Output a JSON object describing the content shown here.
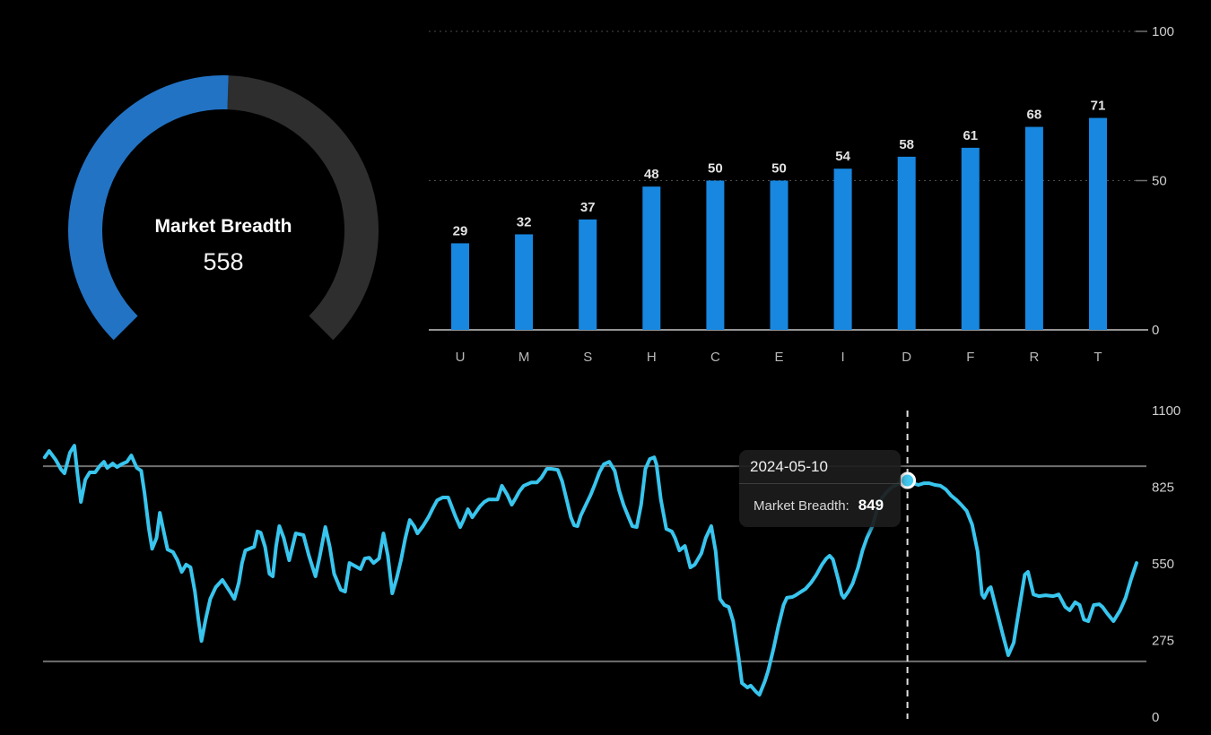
{
  "canvas": {
    "background": "#000000"
  },
  "colors": {
    "gauge_fill": "#2273c4",
    "gauge_track": "#2e2e2e",
    "bar_fill": "#1787e0",
    "line_stroke": "#38c5ee",
    "marker_fill": "#45cbf2",
    "marker_ring": "#ffffff",
    "grid_dotted": "#4d4d4d",
    "axis_solid": "#949494",
    "threshold_line": "#707070",
    "dashed_cursor": "#e0e0e0"
  },
  "chart_data": [
    {
      "type": "gauge",
      "title": "Market Breadth",
      "value": 558,
      "fill_fraction": 0.507,
      "legend_position": "center"
    },
    {
      "type": "bar",
      "title": "",
      "categories": [
        "U",
        "M",
        "S",
        "H",
        "C",
        "E",
        "I",
        "D",
        "F",
        "R",
        "T"
      ],
      "values": [
        29,
        32,
        37,
        48,
        50,
        50,
        54,
        58,
        61,
        68,
        71
      ],
      "xlabel": "",
      "ylabel": "",
      "ylim": [
        0,
        100
      ],
      "yticks": [
        0,
        50,
        100
      ],
      "ytick_labels": [
        "0",
        "50",
        "100"
      ],
      "grid": true,
      "axis_side": "right"
    },
    {
      "type": "line",
      "title": "",
      "xlabel": "",
      "ylabel": "",
      "ylim": [
        0,
        1100
      ],
      "yticks": [
        0,
        275,
        550,
        825,
        1100
      ],
      "ytick_labels": [
        "0",
        "275",
        "550",
        "825",
        "1100"
      ],
      "threshold_values": [
        900,
        200
      ],
      "axis_side": "right",
      "highlight": {
        "date": "2024-05-10",
        "label": "Market Breadth:",
        "value": 849,
        "x_pct": 79.1
      },
      "points": [
        [
          0.4,
          932
        ],
        [
          0.8,
          955
        ],
        [
          1.4,
          923
        ],
        [
          1.9,
          888
        ],
        [
          2.2,
          875
        ],
        [
          2.7,
          949
        ],
        [
          3.1,
          974
        ],
        [
          3.4,
          868
        ],
        [
          3.7,
          772
        ],
        [
          4.1,
          852
        ],
        [
          4.5,
          878
        ],
        [
          5.0,
          878
        ],
        [
          5.4,
          900
        ],
        [
          5.8,
          916
        ],
        [
          6.1,
          894
        ],
        [
          6.6,
          910
        ],
        [
          7.0,
          897
        ],
        [
          7.4,
          907
        ],
        [
          7.9,
          916
        ],
        [
          8.3,
          939
        ],
        [
          8.8,
          894
        ],
        [
          9.2,
          884
        ],
        [
          9.5,
          804
        ],
        [
          9.9,
          675
        ],
        [
          10.2,
          604
        ],
        [
          10.6,
          643
        ],
        [
          10.9,
          733
        ],
        [
          11.2,
          675
        ],
        [
          11.6,
          601
        ],
        [
          12.1,
          592
        ],
        [
          12.5,
          563
        ],
        [
          12.9,
          521
        ],
        [
          13.3,
          547
        ],
        [
          13.7,
          537
        ],
        [
          14.1,
          450
        ],
        [
          14.4,
          354
        ],
        [
          14.7,
          273
        ],
        [
          15.1,
          354
        ],
        [
          15.5,
          424
        ],
        [
          16.0,
          466
        ],
        [
          16.6,
          492
        ],
        [
          17.3,
          450
        ],
        [
          17.7,
          424
        ],
        [
          18.1,
          482
        ],
        [
          18.4,
          553
        ],
        [
          18.7,
          598
        ],
        [
          19.5,
          611
        ],
        [
          19.8,
          666
        ],
        [
          20.1,
          662
        ],
        [
          20.5,
          611
        ],
        [
          20.9,
          514
        ],
        [
          21.2,
          505
        ],
        [
          21.5,
          611
        ],
        [
          21.8,
          685
        ],
        [
          22.2,
          643
        ],
        [
          22.7,
          563
        ],
        [
          23.3,
          659
        ],
        [
          24.0,
          653
        ],
        [
          24.5,
          579
        ],
        [
          25.1,
          505
        ],
        [
          25.5,
          579
        ],
        [
          26.0,
          682
        ],
        [
          26.4,
          611
        ],
        [
          26.8,
          514
        ],
        [
          27.4,
          457
        ],
        [
          27.8,
          450
        ],
        [
          28.2,
          553
        ],
        [
          28.8,
          540
        ],
        [
          29.2,
          531
        ],
        [
          29.6,
          569
        ],
        [
          30.0,
          572
        ],
        [
          30.4,
          553
        ],
        [
          30.9,
          569
        ],
        [
          31.3,
          659
        ],
        [
          31.7,
          579
        ],
        [
          32.1,
          444
        ],
        [
          32.5,
          498
        ],
        [
          32.9,
          563
        ],
        [
          33.3,
          643
        ],
        [
          33.7,
          707
        ],
        [
          34.1,
          685
        ],
        [
          34.4,
          659
        ],
        [
          34.9,
          685
        ],
        [
          35.4,
          717
        ],
        [
          35.8,
          749
        ],
        [
          36.2,
          778
        ],
        [
          36.7,
          788
        ],
        [
          37.2,
          788
        ],
        [
          37.9,
          717
        ],
        [
          38.3,
          682
        ],
        [
          38.6,
          707
        ],
        [
          39.0,
          746
        ],
        [
          39.4,
          717
        ],
        [
          40.1,
          756
        ],
        [
          40.5,
          772
        ],
        [
          40.9,
          781
        ],
        [
          41.7,
          781
        ],
        [
          42.1,
          830
        ],
        [
          42.6,
          797
        ],
        [
          43.0,
          762
        ],
        [
          43.4,
          788
        ],
        [
          43.7,
          810
        ],
        [
          44.1,
          830
        ],
        [
          44.8,
          842
        ],
        [
          45.3,
          842
        ],
        [
          45.7,
          859
        ],
        [
          46.2,
          891
        ],
        [
          46.6,
          891
        ],
        [
          47.2,
          887
        ],
        [
          47.6,
          846
        ],
        [
          48.0,
          781
        ],
        [
          48.4,
          717
        ],
        [
          48.7,
          688
        ],
        [
          49.0,
          685
        ],
        [
          49.3,
          723
        ],
        [
          49.8,
          765
        ],
        [
          50.2,
          797
        ],
        [
          50.6,
          836
        ],
        [
          51.0,
          878
        ],
        [
          51.4,
          907
        ],
        [
          51.9,
          916
        ],
        [
          52.4,
          884
        ],
        [
          52.8,
          813
        ],
        [
          53.2,
          762
        ],
        [
          53.6,
          723
        ],
        [
          54.0,
          685
        ],
        [
          54.4,
          682
        ],
        [
          54.8,
          762
        ],
        [
          55.2,
          891
        ],
        [
          55.6,
          926
        ],
        [
          56.0,
          932
        ],
        [
          56.2,
          907
        ],
        [
          56.6,
          781
        ],
        [
          57.1,
          675
        ],
        [
          57.6,
          666
        ],
        [
          57.9,
          643
        ],
        [
          58.3,
          598
        ],
        [
          58.8,
          614
        ],
        [
          59.3,
          537
        ],
        [
          59.7,
          547
        ],
        [
          60.3,
          588
        ],
        [
          60.7,
          643
        ],
        [
          61.2,
          685
        ],
        [
          61.6,
          595
        ],
        [
          62.0,
          424
        ],
        [
          62.4,
          402
        ],
        [
          62.8,
          395
        ],
        [
          63.2,
          344
        ],
        [
          63.7,
          215
        ],
        [
          64.0,
          122
        ],
        [
          64.5,
          106
        ],
        [
          64.8,
          113
        ],
        [
          65.3,
          90
        ],
        [
          65.6,
          80
        ],
        [
          66.1,
          129
        ],
        [
          66.4,
          167
        ],
        [
          66.9,
          248
        ],
        [
          67.3,
          322
        ],
        [
          67.8,
          402
        ],
        [
          68.1,
          428
        ],
        [
          68.6,
          431
        ],
        [
          68.9,
          437
        ],
        [
          69.4,
          450
        ],
        [
          69.8,
          460
        ],
        [
          70.3,
          482
        ],
        [
          70.8,
          511
        ],
        [
          71.3,
          547
        ],
        [
          71.7,
          569
        ],
        [
          72.0,
          579
        ],
        [
          72.3,
          566
        ],
        [
          72.8,
          492
        ],
        [
          73.1,
          440
        ],
        [
          73.3,
          428
        ],
        [
          73.7,
          450
        ],
        [
          74.1,
          479
        ],
        [
          74.6,
          537
        ],
        [
          75.0,
          598
        ],
        [
          75.4,
          643
        ],
        [
          75.9,
          685
        ],
        [
          76.3,
          740
        ],
        [
          76.8,
          788
        ],
        [
          77.2,
          807
        ],
        [
          77.7,
          826
        ],
        [
          78.1,
          833
        ],
        [
          78.6,
          846
        ],
        [
          79.1,
          849
        ],
        [
          79.6,
          839
        ],
        [
          80.1,
          833
        ],
        [
          80.6,
          839
        ],
        [
          81.1,
          839
        ],
        [
          81.6,
          833
        ],
        [
          82.1,
          830
        ],
        [
          82.6,
          817
        ],
        [
          83.1,
          794
        ],
        [
          83.6,
          778
        ],
        [
          84.0,
          762
        ],
        [
          84.5,
          740
        ],
        [
          85.0,
          691
        ],
        [
          85.5,
          595
        ],
        [
          85.9,
          440
        ],
        [
          86.1,
          428
        ],
        [
          86.5,
          460
        ],
        [
          86.7,
          466
        ],
        [
          87.3,
          373
        ],
        [
          87.8,
          296
        ],
        [
          88.3,
          222
        ],
        [
          88.8,
          267
        ],
        [
          89.0,
          318
        ],
        [
          89.8,
          511
        ],
        [
          90.1,
          521
        ],
        [
          90.6,
          440
        ],
        [
          91.1,
          434
        ],
        [
          91.7,
          437
        ],
        [
          92.4,
          434
        ],
        [
          92.9,
          440
        ],
        [
          93.5,
          395
        ],
        [
          93.9,
          383
        ],
        [
          94.4,
          412
        ],
        [
          94.8,
          402
        ],
        [
          95.2,
          350
        ],
        [
          95.6,
          344
        ],
        [
          96.1,
          402
        ],
        [
          96.6,
          405
        ],
        [
          96.9,
          395
        ],
        [
          97.3,
          373
        ],
        [
          97.9,
          344
        ],
        [
          98.5,
          383
        ],
        [
          99.0,
          428
        ],
        [
          99.5,
          495
        ],
        [
          100,
          553
        ]
      ]
    }
  ]
}
